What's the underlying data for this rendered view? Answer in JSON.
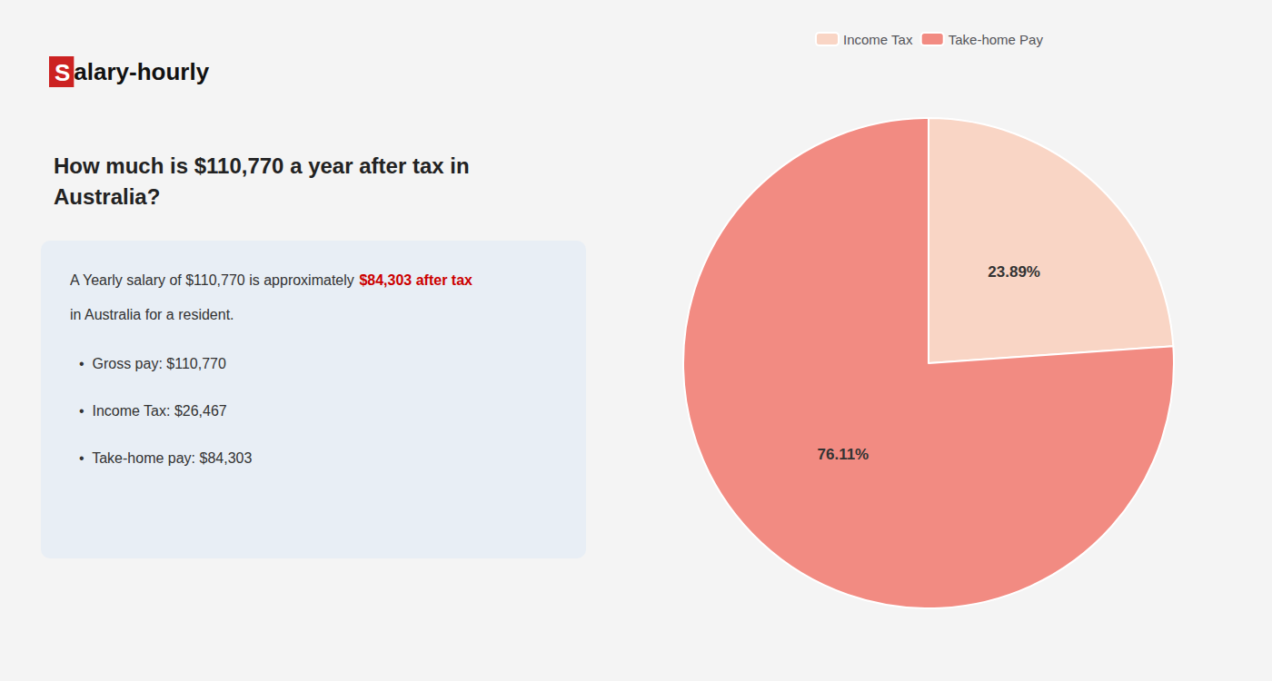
{
  "chart_data": {
    "type": "pie",
    "title": "How much is $110,770 a year after tax in\nAustralia?",
    "categories": [
      "Income Tax",
      "Take-home Pay"
    ],
    "values": [
      23.89,
      76.11
    ],
    "value_labels": [
      "23.89%",
      "76.11%"
    ],
    "colors": [
      "#f9d5c5",
      "#f28b82"
    ],
    "data_labels": true,
    "legend": "top",
    "annotations": [
      [
        {
          "text": "S",
          "color": "#ffffff",
          "background": "#cc2222"
        },
        {
          "text": "alary-hourly",
          "color": "#111111"
        }
      ],
      [
        {
          "text": "A Yearly salary of $110,770 is approximately "
        },
        {
          "text": "$84,303 after tax",
          "color": "#cc0000"
        }
      ],
      [
        {
          "text": "in Australia for a resident."
        }
      ],
      [
        {
          "text": "•  Gross pay: $110,770"
        }
      ],
      [
        {
          "text": "•  Income Tax: $26,467"
        }
      ],
      [
        {
          "text": "•  Take-home pay: $84,303"
        }
      ]
    ]
  }
}
